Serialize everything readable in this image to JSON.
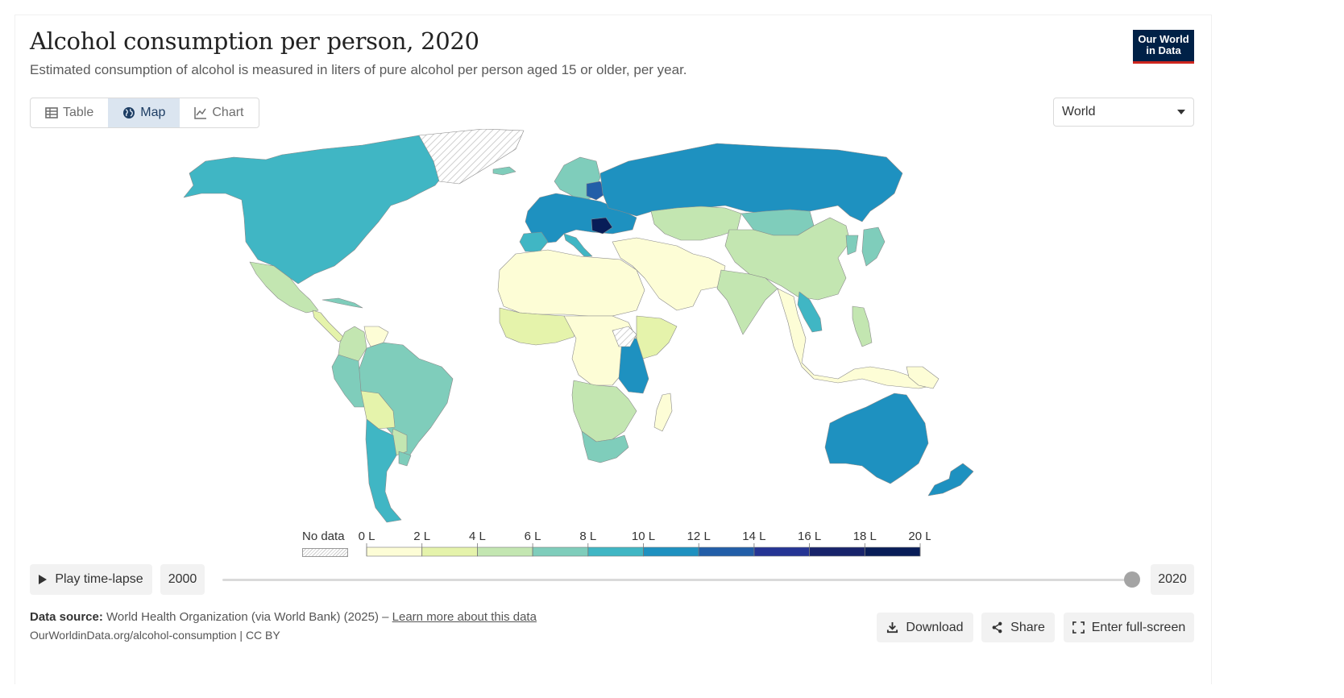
{
  "title": "Alcohol consumption per person, 2020",
  "subtitle": "Estimated consumption of alcohol is measured in liters of pure alcohol per person aged 15 or older, per year.",
  "logo": {
    "line1": "Our World",
    "line2": "in Data"
  },
  "tabs": [
    {
      "label": "Table",
      "icon": "table-icon",
      "active": false
    },
    {
      "label": "Map",
      "icon": "globe-icon",
      "active": true
    },
    {
      "label": "Chart",
      "icon": "line-chart-icon",
      "active": false
    }
  ],
  "region_select": {
    "value": "World"
  },
  "legend": {
    "no_data_label": "No data",
    "tick_labels": [
      "0 L",
      "2 L",
      "4 L",
      "6 L",
      "8 L",
      "10 L",
      "12 L",
      "14 L",
      "16 L",
      "18 L",
      "20 L"
    ],
    "bin_colors": [
      "#fdfdd6",
      "#e5f3ab",
      "#c3e6b1",
      "#7fcdbb",
      "#40b6c4",
      "#1e91c0",
      "#225ea8",
      "#253494",
      "#18236b",
      "#081d58"
    ]
  },
  "timeline": {
    "play_label": "Play time-lapse",
    "start_year": "2000",
    "end_year": "2020",
    "selected_position": 1.0
  },
  "footer": {
    "source_label": "Data source:",
    "source_text": "World Health Organization (via World Bank) (2025) –",
    "source_link": "Learn more about this data",
    "url": "OurWorldinData.org/alcohol-consumption | CC BY",
    "buttons": {
      "download": "Download",
      "share": "Share",
      "fullscreen": "Enter full-screen"
    }
  },
  "map_regions": [
    {
      "name": "North America",
      "color": "#40b6c4"
    },
    {
      "name": "Greenland",
      "color": "nodata"
    },
    {
      "name": "Mexico",
      "color": "#c3e6b1"
    },
    {
      "name": "Central America",
      "color": "#e5f3ab"
    },
    {
      "name": "Cuba",
      "color": "#7fcdbb"
    },
    {
      "name": "Colombia",
      "color": "#c3e6b1"
    },
    {
      "name": "Venezuela",
      "color": "#fdfdd6"
    },
    {
      "name": "Brazil",
      "color": "#7fcdbb"
    },
    {
      "name": "Peru",
      "color": "#7fcdbb"
    },
    {
      "name": "Bolivia",
      "color": "#e5f3ab"
    },
    {
      "name": "Paraguay",
      "color": "#c3e6b1"
    },
    {
      "name": "Argentina",
      "color": "#40b6c4"
    },
    {
      "name": "Uruguay",
      "color": "#7fcdbb"
    },
    {
      "name": "Iceland",
      "color": "#7fcdbb"
    },
    {
      "name": "Scandinavia",
      "color": "#7fcdbb"
    },
    {
      "name": "Western Europe",
      "color": "#1e91c0"
    },
    {
      "name": "Iberia",
      "color": "#40b6c4"
    },
    {
      "name": "Italy",
      "color": "#40b6c4"
    },
    {
      "name": "Romania",
      "color": "#081d58"
    },
    {
      "name": "Baltics",
      "color": "#225ea8"
    },
    {
      "name": "Russia",
      "color": "#1e91c0"
    },
    {
      "name": "Kazakhstan",
      "color": "#c3e6b1"
    },
    {
      "name": "Mongolia",
      "color": "#7fcdbb"
    },
    {
      "name": "China",
      "color": "#c3e6b1"
    },
    {
      "name": "Korea Japan",
      "color": "#7fcdbb"
    },
    {
      "name": "Middle East",
      "color": "#fdfdd6"
    },
    {
      "name": "North Africa",
      "color": "#fdfdd6"
    },
    {
      "name": "West Africa",
      "color": "#e5f3ab"
    },
    {
      "name": "Central Africa",
      "color": "#fdfdd6"
    },
    {
      "name": "East Africa",
      "color": "#e5f3ab"
    },
    {
      "name": "Tanzania Uganda",
      "color": "#1e91c0"
    },
    {
      "name": "Somalia",
      "color": "nodata"
    },
    {
      "name": "Southern Africa",
      "color": "#c3e6b1"
    },
    {
      "name": "South Africa",
      "color": "#7fcdbb"
    },
    {
      "name": "Madagascar",
      "color": "#fdfdd6"
    },
    {
      "name": "India",
      "color": "#c3e6b1"
    },
    {
      "name": "Southeast Asia",
      "color": "#fdfdd6"
    },
    {
      "name": "Vietnam Laos",
      "color": "#40b6c4"
    },
    {
      "name": "Philippines",
      "color": "#c3e6b1"
    },
    {
      "name": "Australia",
      "color": "#1e91c0"
    },
    {
      "name": "New Zealand",
      "color": "#1e91c0"
    },
    {
      "name": "Papua New Guinea",
      "color": "#fdfdd6"
    }
  ]
}
